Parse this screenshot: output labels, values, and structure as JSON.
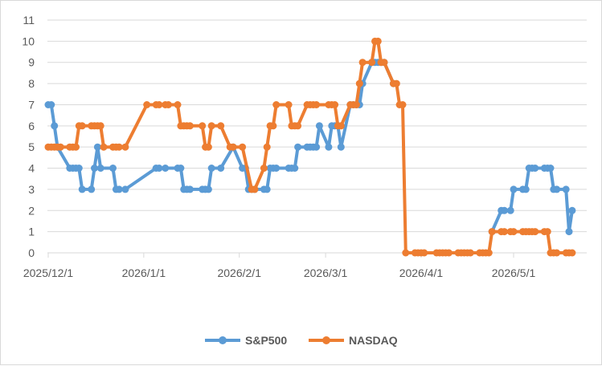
{
  "chart_data": {
    "type": "line",
    "title": "",
    "xlabel": "",
    "ylabel": "",
    "ylim": [
      0,
      11
    ],
    "y_ticks": [
      "0",
      "1",
      "2",
      "3",
      "4",
      "5",
      "6",
      "7",
      "8",
      "9",
      "10",
      "11"
    ],
    "x_ticks": [
      "2025/12/1",
      "2026/1/1",
      "2026/2/1",
      "2026/3/1",
      "2026/4/1",
      "2026/5/1"
    ],
    "grid": "horizontal",
    "legend_position": "bottom",
    "series": [
      {
        "name": "S&P500",
        "color": "#5b9bd5",
        "points": [
          [
            "2025-12-01",
            7
          ],
          [
            "2025-12-02",
            7
          ],
          [
            "2025-12-03",
            6
          ],
          [
            "2025-12-04",
            5
          ],
          [
            "2025-12-08",
            4
          ],
          [
            "2025-12-09",
            4
          ],
          [
            "2025-12-10",
            4
          ],
          [
            "2025-12-11",
            4
          ],
          [
            "2025-12-12",
            3
          ],
          [
            "2025-12-15",
            3
          ],
          [
            "2025-12-16",
            4
          ],
          [
            "2025-12-17",
            5
          ],
          [
            "2025-12-18",
            4
          ],
          [
            "2025-12-22",
            4
          ],
          [
            "2025-12-23",
            3
          ],
          [
            "2025-12-24",
            3
          ],
          [
            "2025-12-26",
            3
          ],
          [
            "2026-01-05",
            4
          ],
          [
            "2026-01-06",
            4
          ],
          [
            "2026-01-08",
            4
          ],
          [
            "2026-01-12",
            4
          ],
          [
            "2026-01-13",
            4
          ],
          [
            "2026-01-14",
            3
          ],
          [
            "2026-01-15",
            3
          ],
          [
            "2026-01-16",
            3
          ],
          [
            "2026-01-20",
            3
          ],
          [
            "2026-01-21",
            3
          ],
          [
            "2026-01-22",
            3
          ],
          [
            "2026-01-23",
            4
          ],
          [
            "2026-01-26",
            4
          ],
          [
            "2026-01-30",
            5
          ],
          [
            "2026-02-02",
            4
          ],
          [
            "2026-02-03",
            4
          ],
          [
            "2026-02-04",
            3
          ],
          [
            "2026-02-05",
            3
          ],
          [
            "2026-02-06",
            3
          ],
          [
            "2026-02-09",
            3
          ],
          [
            "2026-02-10",
            3
          ],
          [
            "2026-02-11",
            4
          ],
          [
            "2026-02-12",
            4
          ],
          [
            "2026-02-13",
            4
          ],
          [
            "2026-02-17",
            4
          ],
          [
            "2026-02-18",
            4
          ],
          [
            "2026-02-19",
            4
          ],
          [
            "2026-02-20",
            5
          ],
          [
            "2026-02-23",
            5
          ],
          [
            "2026-02-24",
            5
          ],
          [
            "2026-02-25",
            5
          ],
          [
            "2026-02-26",
            5
          ],
          [
            "2026-02-27",
            6
          ],
          [
            "2026-03-02",
            5
          ],
          [
            "2026-03-03",
            6
          ],
          [
            "2026-03-04",
            6
          ],
          [
            "2026-03-05",
            6
          ],
          [
            "2026-03-06",
            5
          ],
          [
            "2026-03-09",
            7
          ],
          [
            "2026-03-10",
            7
          ],
          [
            "2026-03-11",
            7
          ],
          [
            "2026-03-12",
            7
          ],
          [
            "2026-03-13",
            8
          ],
          [
            "2026-03-16",
            9
          ],
          [
            "2026-03-17",
            9
          ],
          [
            "2026-03-18",
            9
          ],
          [
            "2026-03-19",
            9
          ],
          [
            "2026-03-20",
            9
          ],
          [
            "2026-03-23",
            8
          ]
        ],
        "points_late": [
          [
            "2026-04-24",
            1
          ],
          [
            "2026-04-27",
            2
          ],
          [
            "2026-04-28",
            2
          ],
          [
            "2026-04-30",
            2
          ],
          [
            "2026-05-01",
            3
          ],
          [
            "2026-05-04",
            3
          ],
          [
            "2026-05-05",
            3
          ],
          [
            "2026-05-06",
            4
          ],
          [
            "2026-05-07",
            4
          ],
          [
            "2026-05-08",
            4
          ],
          [
            "2026-05-11",
            4
          ],
          [
            "2026-05-12",
            4
          ],
          [
            "2026-05-13",
            4
          ],
          [
            "2026-05-14",
            3
          ],
          [
            "2026-05-15",
            3
          ],
          [
            "2026-05-18",
            3
          ],
          [
            "2026-05-19",
            1
          ],
          [
            "2026-05-20",
            2
          ]
        ]
      },
      {
        "name": "NASDAQ",
        "color": "#ed7d31",
        "points": [
          [
            "2025-12-01",
            5
          ],
          [
            "2025-12-02",
            5
          ],
          [
            "2025-12-03",
            5
          ],
          [
            "2025-12-04",
            5
          ],
          [
            "2025-12-05",
            5
          ],
          [
            "2025-12-08",
            5
          ],
          [
            "2025-12-09",
            5
          ],
          [
            "2025-12-10",
            5
          ],
          [
            "2025-12-11",
            6
          ],
          [
            "2025-12-12",
            6
          ],
          [
            "2025-12-15",
            6
          ],
          [
            "2025-12-16",
            6
          ],
          [
            "2025-12-17",
            6
          ],
          [
            "2025-12-18",
            6
          ],
          [
            "2025-12-19",
            5
          ],
          [
            "2025-12-22",
            5
          ],
          [
            "2025-12-23",
            5
          ],
          [
            "2025-12-24",
            5
          ],
          [
            "2025-12-26",
            5
          ],
          [
            "2026-01-02",
            7
          ],
          [
            "2026-01-05",
            7
          ],
          [
            "2026-01-06",
            7
          ],
          [
            "2026-01-08",
            7
          ],
          [
            "2026-01-09",
            7
          ],
          [
            "2026-01-12",
            7
          ],
          [
            "2026-01-13",
            6
          ],
          [
            "2026-01-14",
            6
          ],
          [
            "2026-01-15",
            6
          ],
          [
            "2026-01-16",
            6
          ],
          [
            "2026-01-20",
            6
          ],
          [
            "2026-01-21",
            5
          ],
          [
            "2026-01-22",
            5
          ],
          [
            "2026-01-23",
            6
          ],
          [
            "2026-01-26",
            6
          ],
          [
            "2026-01-29",
            5
          ],
          [
            "2026-01-30",
            5
          ],
          [
            "2026-02-02",
            5
          ],
          [
            "2026-02-05",
            3
          ],
          [
            "2026-02-06",
            3
          ],
          [
            "2026-02-09",
            4
          ],
          [
            "2026-02-10",
            5
          ],
          [
            "2026-02-11",
            6
          ],
          [
            "2026-02-12",
            6
          ],
          [
            "2026-02-13",
            7
          ],
          [
            "2026-02-17",
            7
          ],
          [
            "2026-02-18",
            6
          ],
          [
            "2026-02-19",
            6
          ],
          [
            "2026-02-20",
            6
          ],
          [
            "2026-02-23",
            7
          ],
          [
            "2026-02-24",
            7
          ],
          [
            "2026-02-25",
            7
          ],
          [
            "2026-02-26",
            7
          ],
          [
            "2026-03-02",
            7
          ],
          [
            "2026-03-03",
            7
          ],
          [
            "2026-03-04",
            7
          ],
          [
            "2026-03-05",
            6
          ],
          [
            "2026-03-06",
            6
          ],
          [
            "2026-03-09",
            7
          ],
          [
            "2026-03-10",
            7
          ],
          [
            "2026-03-11",
            7
          ],
          [
            "2026-03-12",
            8
          ],
          [
            "2026-03-13",
            9
          ],
          [
            "2026-03-16",
            9
          ],
          [
            "2026-03-17",
            10
          ],
          [
            "2026-03-18",
            10
          ],
          [
            "2026-03-19",
            9
          ],
          [
            "2026-03-20",
            9
          ],
          [
            "2026-03-23",
            8
          ],
          [
            "2026-03-24",
            8
          ],
          [
            "2026-03-25",
            7
          ],
          [
            "2026-03-26",
            7
          ],
          [
            "2026-03-27",
            0
          ],
          [
            "2026-03-30",
            0
          ],
          [
            "2026-03-31",
            0
          ],
          [
            "2026-04-01",
            0
          ],
          [
            "2026-04-02",
            0
          ],
          [
            "2026-04-06",
            0
          ],
          [
            "2026-04-07",
            0
          ],
          [
            "2026-04-08",
            0
          ],
          [
            "2026-04-09",
            0
          ],
          [
            "2026-04-10",
            0
          ],
          [
            "2026-04-13",
            0
          ],
          [
            "2026-04-14",
            0
          ],
          [
            "2026-04-15",
            0
          ],
          [
            "2026-04-16",
            0
          ],
          [
            "2026-04-17",
            0
          ],
          [
            "2026-04-20",
            0
          ],
          [
            "2026-04-21",
            0
          ],
          [
            "2026-04-22",
            0
          ],
          [
            "2026-04-23",
            0
          ],
          [
            "2026-04-24",
            1
          ],
          [
            "2026-04-27",
            1
          ],
          [
            "2026-04-28",
            1
          ],
          [
            "2026-04-30",
            1
          ],
          [
            "2026-05-01",
            1
          ],
          [
            "2026-05-04",
            1
          ],
          [
            "2026-05-05",
            1
          ],
          [
            "2026-05-06",
            1
          ],
          [
            "2026-05-07",
            1
          ],
          [
            "2026-05-08",
            1
          ],
          [
            "2026-05-11",
            1
          ],
          [
            "2026-05-12",
            1
          ],
          [
            "2026-05-13",
            0
          ],
          [
            "2026-05-14",
            0
          ],
          [
            "2026-05-15",
            0
          ],
          [
            "2026-05-18",
            0
          ],
          [
            "2026-05-19",
            0
          ],
          [
            "2026-05-20",
            0
          ]
        ]
      }
    ]
  }
}
